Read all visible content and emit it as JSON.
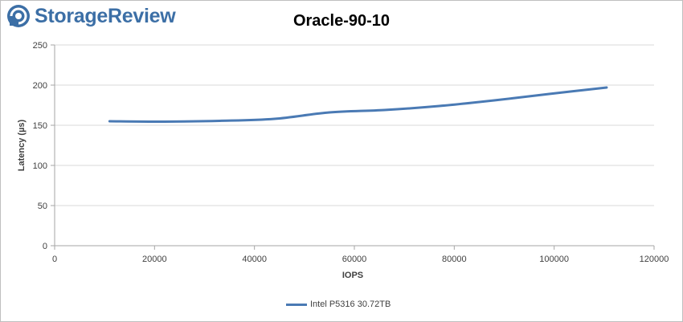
{
  "brand": {
    "name": "StorageReview",
    "color": "#3c6fa6"
  },
  "chart_data": {
    "type": "line",
    "title": "Oracle-90-10",
    "xlabel": "IOPS",
    "ylabel": "Latency (µs)",
    "xlim": [
      0,
      120000
    ],
    "ylim": [
      0,
      250
    ],
    "xticks": [
      0,
      20000,
      40000,
      60000,
      80000,
      100000,
      120000
    ],
    "yticks": [
      0,
      50,
      100,
      150,
      200,
      250
    ],
    "grid": true,
    "legend_position": "bottom",
    "series": [
      {
        "name": "Intel P5316 30.72TB",
        "color": "#4a7ab4",
        "x": [
          11000,
          22000,
          33000,
          44000,
          55000,
          66000,
          77000,
          88000,
          99000,
          110500
        ],
        "y": [
          155,
          154.5,
          155.5,
          158,
          166,
          169,
          174,
          181,
          189,
          197
        ]
      }
    ]
  }
}
